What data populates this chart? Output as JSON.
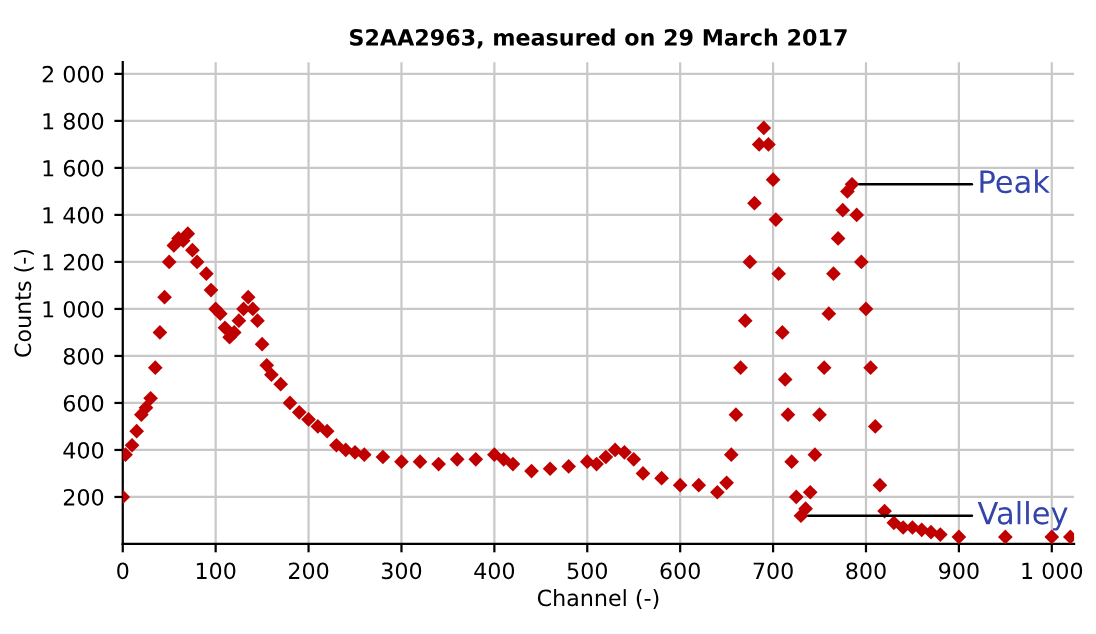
{
  "chart_data": {
    "type": "scatter",
    "title": "S2AA2963, measured on 29 March 2017",
    "xlabel": "Channel (-)",
    "ylabel": "Counts (-)",
    "xlim": [
      0,
      1024
    ],
    "ylim": [
      0,
      2050
    ],
    "xticks": [
      0,
      100,
      200,
      300,
      400,
      500,
      600,
      700,
      800,
      900,
      {
        "value": 1000,
        "label": "1 000"
      }
    ],
    "yticks": [
      200,
      400,
      600,
      800,
      {
        "value": 1000,
        "label": "1 000"
      },
      {
        "value": 1200,
        "label": "1 200"
      },
      {
        "value": 1400,
        "label": "1 400"
      },
      {
        "value": 1600,
        "label": "1 600"
      },
      {
        "value": 1800,
        "label": "1 800"
      },
      {
        "value": 2000,
        "label": "2 000"
      }
    ],
    "grid": true,
    "marker": "diamond",
    "legend": false,
    "annotations": [
      {
        "text": "Peak",
        "x": 785,
        "y": 1530
      },
      {
        "text": "Valley",
        "x": 730,
        "y": 120
      }
    ],
    "series": [
      {
        "color": "#c00000",
        "x": [
          0,
          3,
          10,
          15,
          20,
          25,
          30,
          35,
          40,
          45,
          50,
          55,
          60,
          65,
          70,
          75,
          80,
          90,
          95,
          100,
          105,
          110,
          115,
          120,
          125,
          130,
          135,
          140,
          145,
          150,
          155,
          160,
          170,
          180,
          190,
          200,
          210,
          220,
          230,
          240,
          250,
          260,
          280,
          300,
          320,
          340,
          360,
          380,
          400,
          410,
          420,
          440,
          460,
          480,
          500,
          510,
          520,
          530,
          540,
          550,
          560,
          580,
          600,
          620,
          640,
          650,
          655,
          660,
          665,
          670,
          675,
          680,
          685,
          690,
          695,
          700,
          703,
          706,
          710,
          713,
          716,
          720,
          725,
          730,
          735,
          740,
          745,
          750,
          755,
          760,
          765,
          770,
          775,
          780,
          785,
          790,
          795,
          800,
          805,
          810,
          815,
          820,
          830,
          840,
          850,
          860,
          870,
          880,
          900,
          950,
          1000,
          1020
        ],
        "values": [
          200,
          380,
          420,
          480,
          550,
          580,
          620,
          750,
          900,
          1050,
          1200,
          1270,
          1300,
          1290,
          1320,
          1250,
          1200,
          1150,
          1080,
          1000,
          980,
          920,
          880,
          900,
          950,
          1000,
          1050,
          1000,
          950,
          850,
          760,
          720,
          680,
          600,
          560,
          530,
          500,
          480,
          420,
          400,
          390,
          380,
          370,
          350,
          350,
          340,
          360,
          360,
          380,
          360,
          340,
          310,
          320,
          330,
          350,
          340,
          370,
          400,
          390,
          360,
          300,
          280,
          250,
          250,
          220,
          260,
          380,
          550,
          750,
          950,
          1200,
          1450,
          1700,
          1770,
          1700,
          1550,
          1380,
          1150,
          900,
          700,
          550,
          350,
          200,
          120,
          150,
          220,
          380,
          550,
          750,
          980,
          1150,
          1300,
          1420,
          1500,
          1530,
          1400,
          1200,
          1000,
          750,
          500,
          250,
          140,
          90,
          70,
          70,
          60,
          50,
          40,
          30,
          30,
          30,
          30
        ]
      }
    ]
  }
}
